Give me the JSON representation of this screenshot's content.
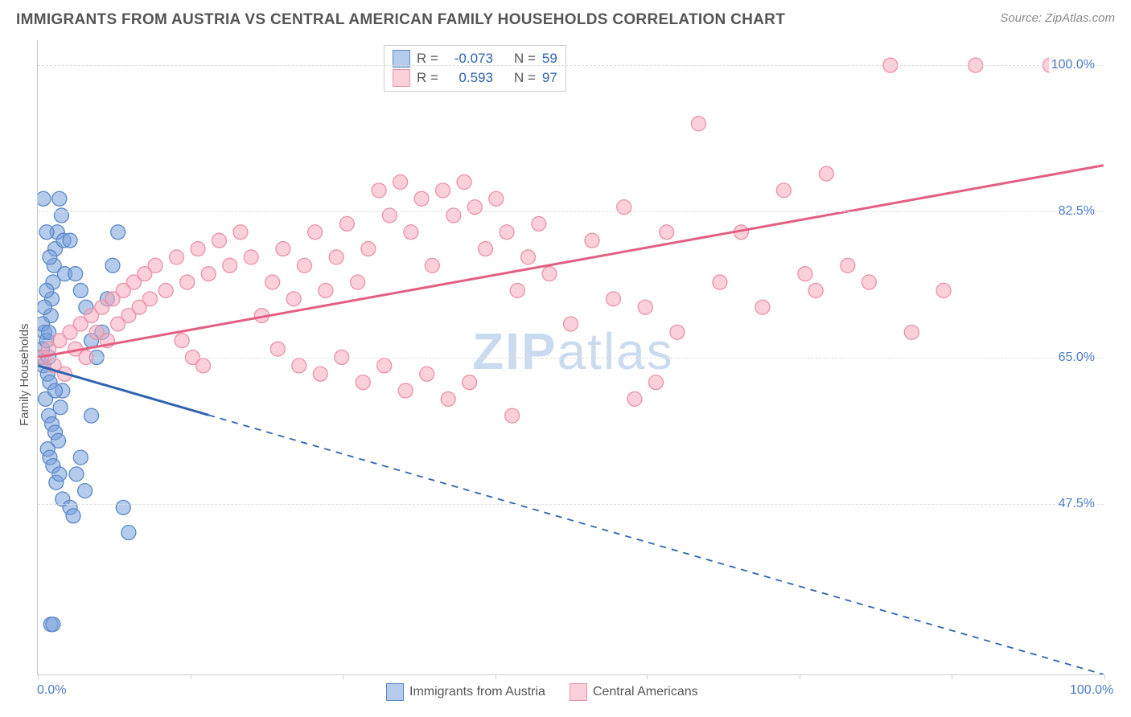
{
  "header": {
    "title": "IMMIGRANTS FROM AUSTRIA VS CENTRAL AMERICAN FAMILY HOUSEHOLDS CORRELATION CHART",
    "source_prefix": "Source: ",
    "source_name": "ZipAtlas.com"
  },
  "chart": {
    "type": "scatter",
    "background_color": "#ffffff",
    "grid_color": "#dddddd",
    "axis_color": "#cccccc",
    "tick_label_color": "#4a7bc7",
    "tick_label_fontsize": 16,
    "y_axis_title": "Family Households",
    "y_axis_title_fontsize": 15,
    "y_axis_title_color": "#555555",
    "xlim": [
      0,
      100
    ],
    "ylim": [
      27,
      103
    ],
    "y_ticks": [
      {
        "value": 47.5,
        "label": "47.5%"
      },
      {
        "value": 65.0,
        "label": "65.0%"
      },
      {
        "value": 82.5,
        "label": "82.5%"
      },
      {
        "value": 100.0,
        "label": "100.0%"
      }
    ],
    "x_tick_values": [
      0,
      14.3,
      28.6,
      42.9,
      57.1,
      71.4,
      85.7,
      100
    ],
    "x_tick_labels": {
      "min": "0.0%",
      "max": "100.0%"
    },
    "watermark": {
      "text_bold": "ZIP",
      "text_light": "atlas",
      "color": "#b0c8e8",
      "fontsize": 64
    }
  },
  "series": {
    "blue": {
      "label": "Immigrants from Austria",
      "fill_color": "rgba(120,160,220,0.55)",
      "stroke_color": "#5a88c6",
      "line_color": "#2f63b0",
      "R": "-0.073",
      "N": "59",
      "marker_radius": 9,
      "trend": {
        "x1": 0,
        "y1": 64,
        "x2": 100,
        "y2": 27,
        "solid_until_x": 16
      },
      "points": [
        [
          0.3,
          65
        ],
        [
          0.4,
          66
        ],
        [
          0.5,
          64
        ],
        [
          0.6,
          68
        ],
        [
          0.8,
          67
        ],
        [
          0.9,
          63
        ],
        [
          1.0,
          65
        ],
        [
          1.1,
          62
        ],
        [
          1.2,
          70
        ],
        [
          1.3,
          72
        ],
        [
          1.4,
          74
        ],
        [
          1.5,
          76
        ],
        [
          1.6,
          78
        ],
        [
          1.8,
          80
        ],
        [
          2.0,
          84
        ],
        [
          2.2,
          82
        ],
        [
          2.4,
          79
        ],
        [
          2.5,
          75
        ],
        [
          0.7,
          60
        ],
        [
          1.0,
          58
        ],
        [
          1.3,
          57
        ],
        [
          1.6,
          56
        ],
        [
          1.9,
          55
        ],
        [
          2.1,
          59
        ],
        [
          2.3,
          61
        ],
        [
          0.9,
          54
        ],
        [
          1.1,
          53
        ],
        [
          1.4,
          52
        ],
        [
          1.7,
          50
        ],
        [
          2.0,
          51
        ],
        [
          2.3,
          48
        ],
        [
          3.0,
          47
        ],
        [
          3.3,
          46
        ],
        [
          3.6,
          51
        ],
        [
          4.0,
          53
        ],
        [
          4.4,
          49
        ],
        [
          5.0,
          58
        ],
        [
          5.5,
          65
        ],
        [
          6.0,
          68
        ],
        [
          6.5,
          72
        ],
        [
          7.0,
          76
        ],
        [
          7.5,
          80
        ],
        [
          8.0,
          47
        ],
        [
          8.5,
          44
        ],
        [
          1.6,
          61
        ],
        [
          0.5,
          84
        ],
        [
          0.8,
          80
        ],
        [
          1.1,
          77
        ],
        [
          3.0,
          79
        ],
        [
          3.5,
          75
        ],
        [
          4.0,
          73
        ],
        [
          4.5,
          71
        ],
        [
          5.0,
          67
        ],
        [
          1.2,
          33
        ],
        [
          1.4,
          33
        ],
        [
          0.4,
          69
        ],
        [
          0.6,
          71
        ],
        [
          0.8,
          73
        ],
        [
          1.0,
          68
        ]
      ]
    },
    "pink": {
      "label": "Central Americans",
      "fill_color": "rgba(250,170,190,0.55)",
      "stroke_color": "#e892a6",
      "line_color": "#e35f82",
      "R": "0.593",
      "N": "97",
      "marker_radius": 9,
      "trend": {
        "x1": 0,
        "y1": 65,
        "x2": 100,
        "y2": 88,
        "solid_until_x": 100
      },
      "points": [
        [
          0.5,
          65
        ],
        [
          1,
          66
        ],
        [
          1.5,
          64
        ],
        [
          2,
          67
        ],
        [
          2.5,
          63
        ],
        [
          3,
          68
        ],
        [
          3.5,
          66
        ],
        [
          4,
          69
        ],
        [
          4.5,
          65
        ],
        [
          5,
          70
        ],
        [
          5.5,
          68
        ],
        [
          6,
          71
        ],
        [
          6.5,
          67
        ],
        [
          7,
          72
        ],
        [
          7.5,
          69
        ],
        [
          8,
          73
        ],
        [
          8.5,
          70
        ],
        [
          9,
          74
        ],
        [
          9.5,
          71
        ],
        [
          10,
          75
        ],
        [
          10.5,
          72
        ],
        [
          11,
          76
        ],
        [
          12,
          73
        ],
        [
          13,
          77
        ],
        [
          14,
          74
        ],
        [
          15,
          78
        ],
        [
          16,
          75
        ],
        [
          17,
          79
        ],
        [
          18,
          76
        ],
        [
          19,
          80
        ],
        [
          20,
          77
        ],
        [
          21,
          70
        ],
        [
          22,
          74
        ],
        [
          23,
          78
        ],
        [
          24,
          72
        ],
        [
          25,
          76
        ],
        [
          26,
          80
        ],
        [
          27,
          73
        ],
        [
          28,
          77
        ],
        [
          29,
          81
        ],
        [
          30,
          74
        ],
        [
          31,
          78
        ],
        [
          32,
          85
        ],
        [
          33,
          82
        ],
        [
          34,
          86
        ],
        [
          35,
          80
        ],
        [
          36,
          84
        ],
        [
          37,
          76
        ],
        [
          38,
          85
        ],
        [
          39,
          82
        ],
        [
          40,
          86
        ],
        [
          41,
          83
        ],
        [
          42,
          78
        ],
        [
          43,
          84
        ],
        [
          44,
          80
        ],
        [
          45,
          73
        ],
        [
          46,
          77
        ],
        [
          47,
          81
        ],
        [
          48,
          75
        ],
        [
          50,
          69
        ],
        [
          52,
          79
        ],
        [
          54,
          72
        ],
        [
          55,
          83
        ],
        [
          56,
          60
        ],
        [
          57,
          71
        ],
        [
          58,
          62
        ],
        [
          59,
          80
        ],
        [
          60,
          68
        ],
        [
          62,
          93
        ],
        [
          64,
          74
        ],
        [
          66,
          80
        ],
        [
          68,
          71
        ],
        [
          70,
          85
        ],
        [
          72,
          75
        ],
        [
          73,
          73
        ],
        [
          74,
          87
        ],
        [
          76,
          76
        ],
        [
          78,
          74
        ],
        [
          80,
          100
        ],
        [
          82,
          68
        ],
        [
          85,
          73
        ],
        [
          88,
          100
        ],
        [
          95,
          100
        ],
        [
          13.5,
          67
        ],
        [
          14.5,
          65
        ],
        [
          15.5,
          64
        ],
        [
          22.5,
          66
        ],
        [
          24.5,
          64
        ],
        [
          26.5,
          63
        ],
        [
          28.5,
          65
        ],
        [
          30.5,
          62
        ],
        [
          32.5,
          64
        ],
        [
          34.5,
          61
        ],
        [
          36.5,
          63
        ],
        [
          38.5,
          60
        ],
        [
          40.5,
          62
        ],
        [
          44.5,
          58
        ]
      ]
    }
  },
  "legend_top": {
    "R_label": "R =",
    "N_label": "N =",
    "value_color": "#2f63b0"
  },
  "legend_bottom": {
    "items": [
      {
        "series": "blue"
      },
      {
        "series": "pink"
      }
    ]
  }
}
